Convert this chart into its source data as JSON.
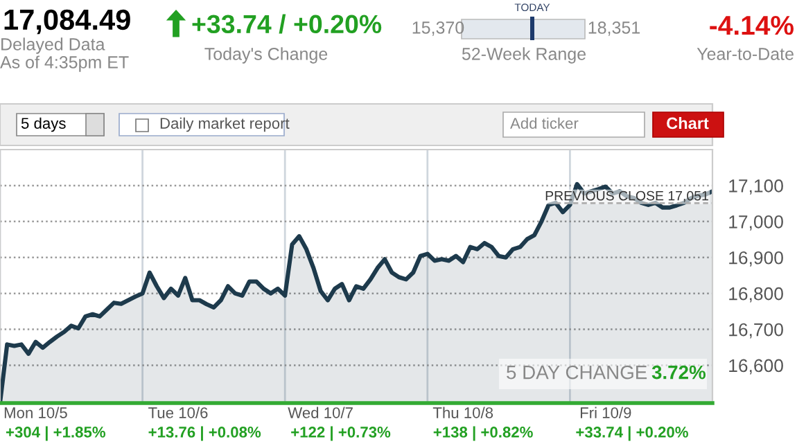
{
  "chart_data": {
    "type": "area",
    "categories": [
      null,
      null,
      null,
      null,
      null,
      "Mon 10/5",
      null,
      null,
      null,
      null,
      null,
      null,
      null,
      null,
      null,
      null,
      null,
      null,
      null,
      null,
      null,
      null,
      null,
      null,
      null,
      "Tue 10/6",
      null,
      null,
      null,
      null,
      null,
      null,
      null,
      null,
      null,
      null,
      null,
      null,
      null,
      null,
      null,
      null,
      null,
      null,
      null,
      "Wed 10/7",
      null,
      null,
      null,
      null,
      null,
      null,
      null,
      null,
      null,
      null,
      null,
      null,
      null,
      null,
      null,
      null,
      null,
      null,
      null,
      "Thu 10/8",
      null,
      null,
      null,
      null,
      null,
      null,
      null,
      null,
      null,
      null,
      null,
      null,
      null,
      null,
      null,
      null,
      null,
      null,
      null,
      "Fri 10/9",
      null,
      null,
      null,
      null,
      null,
      null,
      null,
      null,
      null,
      null,
      null,
      null,
      null,
      null,
      null
    ],
    "series": [
      {
        "color": "#1d3a4c",
        "values": [
          16495,
          16658,
          16654,
          16658,
          16632,
          16665,
          16649,
          16665,
          16680,
          16693,
          16710,
          16703,
          16736,
          16742,
          16736,
          16755,
          16774,
          16771,
          16781,
          16791,
          16800,
          16858,
          16820,
          16787,
          16813,
          16794,
          16843,
          16781,
          16781,
          16770,
          16761,
          16781,
          16820,
          16800,
          16794,
          16833,
          16833,
          16813,
          16800,
          16813,
          16794,
          16936,
          16959,
          16923,
          16871,
          16807,
          16781,
          16813,
          16826,
          16781,
          16820,
          16813,
          16839,
          16871,
          16895,
          16858,
          16845,
          16839,
          16858,
          16904,
          16910,
          16891,
          16895,
          16891,
          16904,
          16887,
          16929,
          16923,
          16940,
          16929,
          16904,
          16900,
          16923,
          16929,
          16951,
          16962,
          17000,
          17046,
          17052,
          17026,
          17046,
          17104,
          17078,
          17084,
          17090,
          17097,
          17078,
          17084,
          17070,
          17065,
          17052,
          17046,
          17052,
          17039,
          17039,
          17045,
          17052,
          17065,
          17072,
          17075,
          17084
        ]
      }
    ],
    "ylim": [
      16495,
      17200
    ],
    "yticks": [
      {
        "value": 16600,
        "label": "16,600"
      },
      {
        "value": 16700,
        "label": "16,700"
      },
      {
        "value": 16800,
        "label": "16,800"
      },
      {
        "value": 16900,
        "label": "16,900"
      },
      {
        "value": 17000,
        "label": "17,000"
      },
      {
        "value": 17100,
        "label": "17,100"
      }
    ],
    "grid": true,
    "ref_lines": [
      {
        "axis": "y",
        "value": 17051,
        "label": "PREVIOUS CLOSE 17,051",
        "color": "#333333",
        "line_style": "dashed"
      }
    ],
    "annotations": [
      "17,084.49",
      "Delayed Data",
      "As of 4:35pm ET",
      "+33.74 / +0.20%",
      "Today's Change",
      "15,370",
      "TODAY",
      "18,351",
      "52-Week Range",
      "-4.14%",
      "Year-to-Date",
      "5 days",
      "Daily market report",
      "Add ticker",
      "Chart",
      "5 DAY CHANGE",
      "3.72%",
      "+304 | +1.85%",
      "+13.76 | +0.08%",
      "+122 | +0.73%",
      "+138 | +0.82%",
      "+33.74 | +0.20%"
    ]
  }
}
